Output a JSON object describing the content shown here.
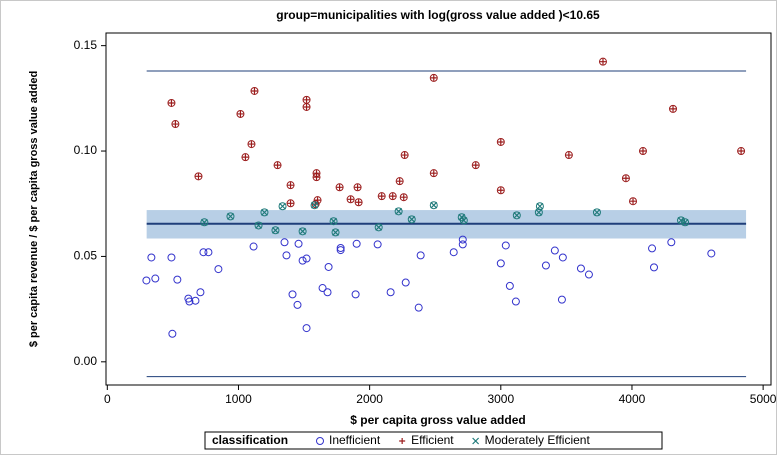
{
  "chart_data": {
    "type": "scatter",
    "title": "group=municipalities with log(gross value added )<10.65",
    "x_label": "$ per capita gross value added",
    "y_label": "$ per capita revenue / $ per capita gross value added",
    "xlim": [
      -10,
      5060
    ],
    "ylim": [
      -0.011,
      0.156
    ],
    "xticks": [
      0,
      1000,
      2000,
      3000,
      4000,
      5000
    ],
    "yticks": [
      {
        "value": 0,
        "label": "0.00"
      },
      0.05,
      {
        "value": 0.1,
        "label": "0.10"
      },
      0.15
    ],
    "legend_title": "classification",
    "legend_position": "bottom",
    "band": {
      "x": [
        300,
        4870
      ],
      "y": [
        0.0585,
        0.072
      ],
      "color": "#b8cfe6"
    },
    "hlines": [
      {
        "x": [
          300,
          4870
        ],
        "y": 0.138,
        "color": "#1f3f7a"
      },
      {
        "x": [
          300,
          4870
        ],
        "y": 0.0655,
        "color": "#1f3f7a"
      },
      {
        "x": [
          300,
          4870
        ],
        "y": -0.007,
        "color": "#1f3f7a"
      }
    ],
    "series": [
      {
        "name": "Inefficient",
        "color": "#3333cc",
        "marker": "circle",
        "x": [
          298,
          336,
          366,
          496,
          489,
          534,
          618,
          626,
          672,
          710,
          733,
          771,
          847,
          1115,
          1351,
          1366,
          1412,
          1450,
          1458,
          1489,
          1519,
          1519,
          1641,
          1679,
          1687,
          1779,
          1779,
          1893,
          1901,
          2061,
          2160,
          2275,
          2374,
          2389,
          2641,
          2710,
          2710,
          3000,
          3038,
          3069,
          3115,
          3344,
          3412,
          3466,
          3473,
          3611,
          3672,
          4168,
          4153,
          4300,
          4605
        ],
        "values": [
          0.0386,
          0.0495,
          0.0395,
          0.0133,
          0.0495,
          0.039,
          0.03,
          0.0286,
          0.029,
          0.033,
          0.052,
          0.052,
          0.044,
          0.0547,
          0.0567,
          0.0505,
          0.032,
          0.027,
          0.056,
          0.048,
          0.049,
          0.016,
          0.035,
          0.033,
          0.045,
          0.053,
          0.054,
          0.032,
          0.056,
          0.0557,
          0.033,
          0.0376,
          0.0257,
          0.0505,
          0.052,
          0.058,
          0.0557,
          0.0467,
          0.0552,
          0.036,
          0.0286,
          0.0457,
          0.0528,
          0.0295,
          0.0495,
          0.0443,
          0.0414,
          0.0448,
          0.0538,
          0.0567,
          0.0514
        ]
      },
      {
        "name": "Efficient",
        "color": "#9b1c1c",
        "marker": "plus",
        "x": [
          489,
          519,
          695,
          1015,
          1053,
          1099,
          1122,
          1298,
          1397,
          1397,
          1519,
          1519,
          1595,
          1595,
          1588,
          1603,
          1771,
          1855,
          1908,
          1916,
          2092,
          2176,
          2229,
          2260,
          2267,
          2489,
          2489,
          2809,
          3000,
          3000,
          3519,
          3954,
          4008,
          4084,
          4313,
          4832,
          3779
        ],
        "values": [
          0.1228,
          0.1128,
          0.088,
          0.1176,
          0.0971,
          0.1033,
          0.1285,
          0.0933,
          0.0838,
          0.0752,
          0.1209,
          0.1243,
          0.0895,
          0.0876,
          0.0748,
          0.0767,
          0.0828,
          0.0771,
          0.0828,
          0.0757,
          0.0786,
          0.0786,
          0.0857,
          0.0781,
          0.0981,
          0.0895,
          0.1347,
          0.0933,
          0.0814,
          0.1043,
          0.0981,
          0.0871,
          0.0762,
          0.1,
          0.12,
          0.1,
          0.1424
        ]
      },
      {
        "name": "Moderately Efficient",
        "color": "#1f7a7a",
        "marker": "x",
        "x": [
          740,
          939,
          1198,
          1153,
          1282,
          1336,
          1489,
          1580,
          1725,
          1740,
          2069,
          2221,
          2321,
          2489,
          2702,
          2718,
          3122,
          3290,
          3298,
          3733,
          4374,
          4405
        ],
        "values": [
          0.0662,
          0.069,
          0.0709,
          0.0647,
          0.0624,
          0.0738,
          0.0619,
          0.0743,
          0.0667,
          0.0614,
          0.0638,
          0.0714,
          0.0676,
          0.0743,
          0.0686,
          0.0671,
          0.0695,
          0.0709,
          0.0738,
          0.0709,
          0.0671,
          0.0662
        ]
      }
    ]
  }
}
